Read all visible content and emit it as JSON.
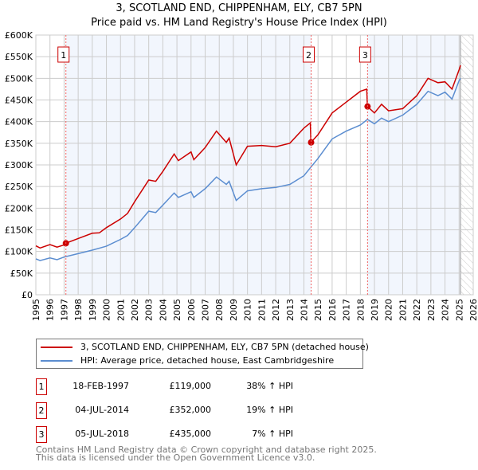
{
  "chart_data": {
    "type": "line",
    "title": "3, SCOTLAND END, CHIPPENHAM, ELY, CB7 5PN",
    "subtitle": "Price paid vs. HM Land Registry's House Price Index (HPI)",
    "xlim": [
      1995,
      2026
    ],
    "ylim": [
      0,
      600000
    ],
    "x_ticks": [
      "1995",
      "1996",
      "1997",
      "1998",
      "1999",
      "2000",
      "2001",
      "2002",
      "2003",
      "2004",
      "2005",
      "2006",
      "2007",
      "2008",
      "2009",
      "2010",
      "2011",
      "2012",
      "2013",
      "2014",
      "2015",
      "2016",
      "2017",
      "2018",
      "2019",
      "2020",
      "2021",
      "2022",
      "2023",
      "2024",
      "2025",
      "2026"
    ],
    "y_ticks": [
      {
        "v": 0,
        "label": "£0"
      },
      {
        "v": 50000,
        "label": "£50K"
      },
      {
        "v": 100000,
        "label": "£100K"
      },
      {
        "v": 150000,
        "label": "£150K"
      },
      {
        "v": 200000,
        "label": "£200K"
      },
      {
        "v": 250000,
        "label": "£250K"
      },
      {
        "v": 300000,
        "label": "£300K"
      },
      {
        "v": 350000,
        "label": "£350K"
      },
      {
        "v": 400000,
        "label": "£400K"
      },
      {
        "v": 450000,
        "label": "£450K"
      },
      {
        "v": 500000,
        "label": "£500K"
      },
      {
        "v": 550000,
        "label": "£550K"
      },
      {
        "v": 600000,
        "label": "£600K"
      }
    ],
    "grid": true,
    "series": [
      {
        "name": "3, SCOTLAND END, CHIPPENHAM, ELY, CB7 5PN (detached house)",
        "color": "#cc0000",
        "x": [
          1995,
          1995.3,
          1996,
          1996.5,
          1997,
          1997.13,
          1998,
          1999,
          1999.5,
          2000,
          2001,
          2001.5,
          2002,
          2003,
          2003.5,
          2004,
          2004.8,
          2005.1,
          2006,
          2006.2,
          2007,
          2007.8,
          2008.5,
          2008.7,
          2009.2,
          2010,
          2011,
          2012,
          2013,
          2014,
          2014.45,
          2014.5,
          2015,
          2016,
          2017,
          2018,
          2018.45,
          2018.5,
          2019,
          2019.5,
          2020,
          2021,
          2022,
          2022.8,
          2023.5,
          2024,
          2024.5,
          2025,
          2025.1
        ],
        "y": [
          113000,
          108000,
          116000,
          110000,
          115000,
          119000,
          130000,
          142000,
          143000,
          155000,
          175000,
          188000,
          215000,
          265000,
          262000,
          285000,
          325000,
          310000,
          330000,
          312000,
          340000,
          378000,
          352000,
          362000,
          300000,
          343000,
          345000,
          342000,
          350000,
          385000,
          397000,
          352000,
          370000,
          420000,
          445000,
          470000,
          475000,
          435000,
          420000,
          440000,
          425000,
          430000,
          460000,
          500000,
          490000,
          492000,
          475000,
          520000,
          530000
        ]
      },
      {
        "name": "HPI: Average price, detached house, East Cambridgeshire",
        "color": "#5b8dd0",
        "x": [
          1995,
          1995.3,
          1996,
          1996.5,
          1997,
          1998,
          1999,
          2000,
          2001,
          2001.5,
          2002,
          2003,
          2003.5,
          2004,
          2004.8,
          2005.1,
          2006,
          2006.2,
          2007,
          2007.8,
          2008.5,
          2008.7,
          2009.2,
          2010,
          2011,
          2012,
          2013,
          2014,
          2014.5,
          2015,
          2016,
          2017,
          2018,
          2018.5,
          2019,
          2019.5,
          2020,
          2021,
          2022,
          2022.8,
          2023.5,
          2024,
          2024.5,
          2025,
          2025.1
        ],
        "y": [
          83000,
          79000,
          85000,
          81000,
          87000,
          95000,
          103000,
          112000,
          128000,
          137000,
          155000,
          193000,
          190000,
          207000,
          235000,
          225000,
          238000,
          225000,
          245000,
          272000,
          255000,
          262000,
          218000,
          240000,
          245000,
          248000,
          255000,
          275000,
          295000,
          315000,
          360000,
          378000,
          392000,
          405000,
          395000,
          408000,
          400000,
          415000,
          440000,
          470000,
          460000,
          468000,
          452000,
          495000,
          500000
        ]
      }
    ],
    "sales": [
      {
        "id": "1",
        "year": 1997.13,
        "price": 119000
      },
      {
        "id": "2",
        "year": 2014.51,
        "price": 352000
      },
      {
        "id": "3",
        "year": 2018.51,
        "price": 435000
      }
    ],
    "legend_placement": "bottom"
  },
  "legend": {
    "property": "3, SCOTLAND END, CHIPPENHAM, ELY, CB7 5PN (detached house)",
    "hpi": "HPI: Average price, detached house, East Cambridgeshire"
  },
  "transactions": [
    {
      "num": "1",
      "date": "18-FEB-1997",
      "price": "£119,000",
      "delta": "38% ↑ HPI"
    },
    {
      "num": "2",
      "date": "04-JUL-2014",
      "price": "£352,000",
      "delta": "19% ↑ HPI"
    },
    {
      "num": "3",
      "date": "05-JUL-2018",
      "price": "£435,000",
      "delta": "7% ↑ HPI"
    }
  ],
  "footer": {
    "line1": "Contains HM Land Registry data © Crown copyright and database right 2025.",
    "line2": "This data is licensed under the Open Government Licence v3.0."
  }
}
